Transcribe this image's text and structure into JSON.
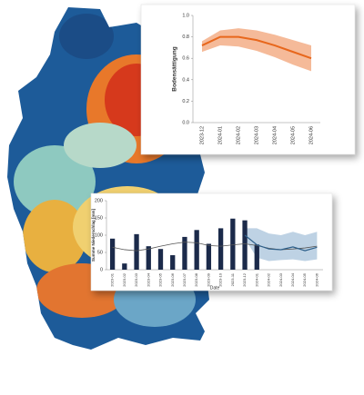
{
  "chart_data": [
    {
      "type": "line",
      "y_label": "Bodensättigung",
      "categories": [
        "2023-12",
        "2024-01",
        "2024-02",
        "2024-03",
        "2024-04",
        "2024-05",
        "2024-06"
      ],
      "values": [
        0.72,
        0.8,
        0.8,
        0.77,
        0.72,
        0.66,
        0.6
      ],
      "lower": [
        0.66,
        0.72,
        0.71,
        0.67,
        0.61,
        0.54,
        0.48
      ],
      "upper": [
        0.76,
        0.86,
        0.88,
        0.86,
        0.82,
        0.77,
        0.72
      ],
      "color": "#e8671c",
      "ylim": [
        0,
        1
      ],
      "yticks": [
        {
          "value": 0,
          "label": "0.0"
        },
        0.2,
        0.4,
        0.6,
        0.8,
        {
          "value": 1,
          "label": "1.0"
        }
      ]
    },
    {
      "type": "bar",
      "y_label": "Summe Niederschlag [mm]",
      "x_label": "Date",
      "categories": [
        "2023-01",
        "2023-02",
        "2023-03",
        "2023-04",
        "2023-05",
        "2023-06",
        "2023-07",
        "2023-08",
        "2023-09",
        "2023-10",
        "2023-11",
        "2023-12",
        "2024-01",
        "2024-02",
        "2024-03",
        "2024-04",
        "2024-05",
        "2024-06"
      ],
      "values": [
        90,
        18,
        103,
        68,
        60,
        42,
        95,
        115,
        75,
        120,
        148,
        143,
        73,
        null,
        null,
        null,
        null,
        null
      ],
      "mean": [
        65,
        58,
        55,
        60,
        68,
        75,
        80,
        78,
        70,
        68,
        72,
        75,
        70,
        62,
        58,
        60,
        63,
        68
      ],
      "forecast": [
        null,
        null,
        null,
        null,
        null,
        null,
        null,
        null,
        null,
        null,
        null,
        100,
        72,
        60,
        58,
        66,
        55,
        65
      ],
      "lower": [
        null,
        null,
        null,
        null,
        null,
        null,
        null,
        null,
        null,
        null,
        null,
        90,
        35,
        25,
        28,
        30,
        25,
        30
      ],
      "upper": [
        null,
        null,
        null,
        null,
        null,
        null,
        null,
        null,
        null,
        null,
        null,
        120,
        120,
        105,
        100,
        110,
        100,
        110
      ],
      "color": "#1b2a4a",
      "ylim": [
        0,
        200
      ],
      "yticks": [
        0,
        50,
        100,
        150,
        200
      ]
    }
  ]
}
